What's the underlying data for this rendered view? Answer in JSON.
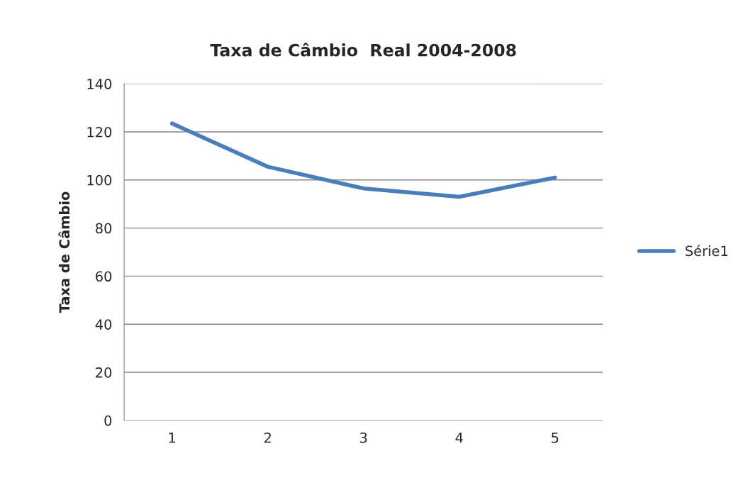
{
  "chart_data": {
    "type": "line",
    "title": "Taxa de Câmbio  Real 2004-2008",
    "ylabel": "Taxa de Câmbio",
    "categories": [
      "1",
      "2",
      "3",
      "4",
      "5"
    ],
    "series": [
      {
        "name": "Série1",
        "color": "#4a7ebb",
        "values": [
          123.5,
          105.5,
          96.5,
          93,
          101
        ]
      }
    ],
    "ylim": [
      0,
      140
    ],
    "yticks": [
      0,
      20,
      40,
      60,
      80,
      100,
      120,
      140
    ],
    "grid": "y",
    "legend": "right",
    "marker": "none",
    "line_style": "solid"
  }
}
